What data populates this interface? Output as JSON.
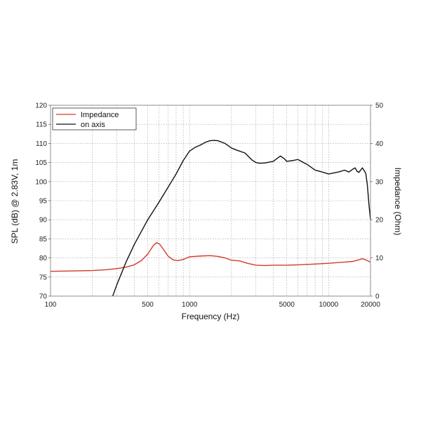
{
  "chart_data": {
    "type": "line",
    "xlabel": "Frequency (Hz)",
    "ylabel_left": "SPL (dB) @ 2.83V, 1m",
    "ylabel_right": "Impedance (Ohm)",
    "x_scale": "log",
    "xlim": [
      100,
      20000
    ],
    "ylim_left": [
      70,
      120
    ],
    "ylim_right": [
      0,
      50
    ],
    "grid": true,
    "legend_position": "top-left",
    "x_tick_labels": [
      "100",
      "500",
      "1000",
      "5000",
      "10000",
      "20000"
    ],
    "y_left_ticks": [
      "70",
      "75",
      "80",
      "85",
      "90",
      "95",
      "100",
      "105",
      "110",
      "115",
      "120"
    ],
    "y_right_ticks": [
      "0",
      "10",
      "20",
      "30",
      "40",
      "50"
    ],
    "series": [
      {
        "name": "Impedance",
        "axis": "right",
        "color": "#d23a2a",
        "points": [
          [
            100,
            6.5
          ],
          [
            150,
            6.6
          ],
          [
            200,
            6.7
          ],
          [
            250,
            6.9
          ],
          [
            300,
            7.2
          ],
          [
            350,
            7.6
          ],
          [
            400,
            8.2
          ],
          [
            450,
            9.3
          ],
          [
            500,
            11.0
          ],
          [
            550,
            13.3
          ],
          [
            580,
            14.0
          ],
          [
            610,
            13.6
          ],
          [
            650,
            12.2
          ],
          [
            700,
            10.5
          ],
          [
            760,
            9.5
          ],
          [
            820,
            9.3
          ],
          [
            900,
            9.6
          ],
          [
            1000,
            10.3
          ],
          [
            1200,
            10.5
          ],
          [
            1400,
            10.6
          ],
          [
            1600,
            10.4
          ],
          [
            1800,
            10.0
          ],
          [
            2000,
            9.4
          ],
          [
            2300,
            9.2
          ],
          [
            2600,
            8.6
          ],
          [
            3000,
            8.1
          ],
          [
            3500,
            8.0
          ],
          [
            4000,
            8.1
          ],
          [
            5000,
            8.1
          ],
          [
            6000,
            8.2
          ],
          [
            8000,
            8.4
          ],
          [
            10000,
            8.6
          ],
          [
            13000,
            8.9
          ],
          [
            15000,
            9.1
          ],
          [
            16500,
            9.5
          ],
          [
            17500,
            9.8
          ],
          [
            18500,
            9.5
          ],
          [
            20000,
            8.9
          ]
        ]
      },
      {
        "name": "on axis",
        "axis": "left",
        "color": "#111111",
        "points": [
          [
            280,
            70.0
          ],
          [
            300,
            73.0
          ],
          [
            350,
            79.0
          ],
          [
            400,
            83.5
          ],
          [
            500,
            90.0
          ],
          [
            600,
            94.5
          ],
          [
            700,
            98.5
          ],
          [
            800,
            102.0
          ],
          [
            900,
            105.5
          ],
          [
            1000,
            108.0
          ],
          [
            1100,
            109.0
          ],
          [
            1200,
            109.6
          ],
          [
            1300,
            110.3
          ],
          [
            1400,
            110.7
          ],
          [
            1500,
            110.8
          ],
          [
            1600,
            110.7
          ],
          [
            1800,
            110.0
          ],
          [
            2000,
            108.8
          ],
          [
            2200,
            108.2
          ],
          [
            2500,
            107.5
          ],
          [
            2800,
            105.7
          ],
          [
            3000,
            105.0
          ],
          [
            3200,
            104.8
          ],
          [
            3500,
            104.9
          ],
          [
            4000,
            105.3
          ],
          [
            4500,
            106.7
          ],
          [
            4800,
            106.0
          ],
          [
            5000,
            105.3
          ],
          [
            5500,
            105.5
          ],
          [
            6000,
            105.8
          ],
          [
            7000,
            104.5
          ],
          [
            8000,
            103.0
          ],
          [
            9000,
            102.5
          ],
          [
            10000,
            102.0
          ],
          [
            11000,
            102.3
          ],
          [
            12000,
            102.6
          ],
          [
            13000,
            103.0
          ],
          [
            14000,
            102.5
          ],
          [
            15000,
            103.3
          ],
          [
            15500,
            103.6
          ],
          [
            16000,
            102.7
          ],
          [
            16500,
            102.4
          ],
          [
            17500,
            103.6
          ],
          [
            18500,
            102.2
          ],
          [
            19000,
            99.0
          ],
          [
            19500,
            94.0
          ],
          [
            20000,
            90.0
          ]
        ]
      }
    ]
  }
}
